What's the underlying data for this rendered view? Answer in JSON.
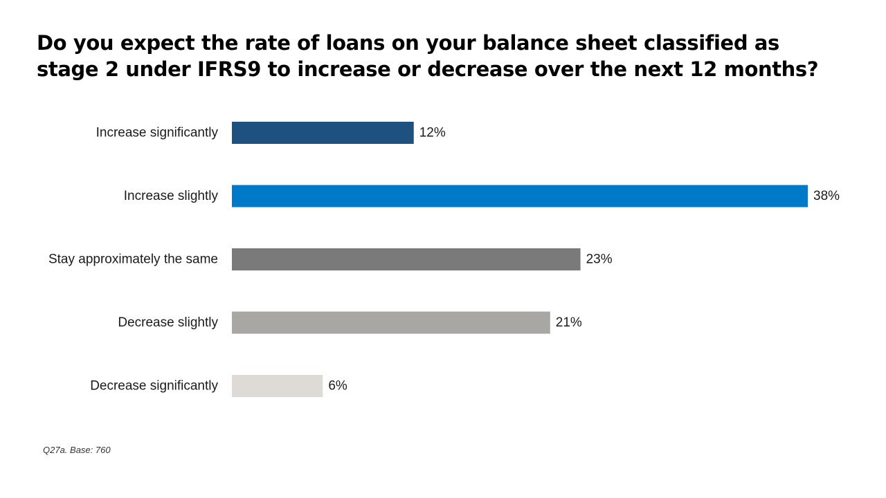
{
  "title_lines": [
    "Do you expect the rate of loans on your balance sheet classified as",
    "stage 2 under IFRS9 to increase or decrease over the next 12 months?"
  ],
  "footnote": "Q27a. Base: 760",
  "chart_data": {
    "type": "bar",
    "orientation": "horizontal",
    "title": "Do you expect the rate of loans on your balance sheet classified as stage 2 under IFRS9 to increase or decrease over the next 12 months?",
    "categories": [
      "Increase significantly",
      "Increase slightly",
      "Stay approximately the same",
      "Decrease slightly",
      "Decrease significantly"
    ],
    "values": [
      12,
      38,
      23,
      21,
      6
    ],
    "value_labels": [
      "12%",
      "38%",
      "23%",
      "21%",
      "6%"
    ],
    "colors": [
      "#1f5180",
      "#0079c8",
      "#7b7a7a",
      "#a9a7a4",
      "#dedad6"
    ],
    "unit": "%",
    "xlim": [
      0,
      38
    ],
    "grid": false,
    "legend": "none"
  }
}
